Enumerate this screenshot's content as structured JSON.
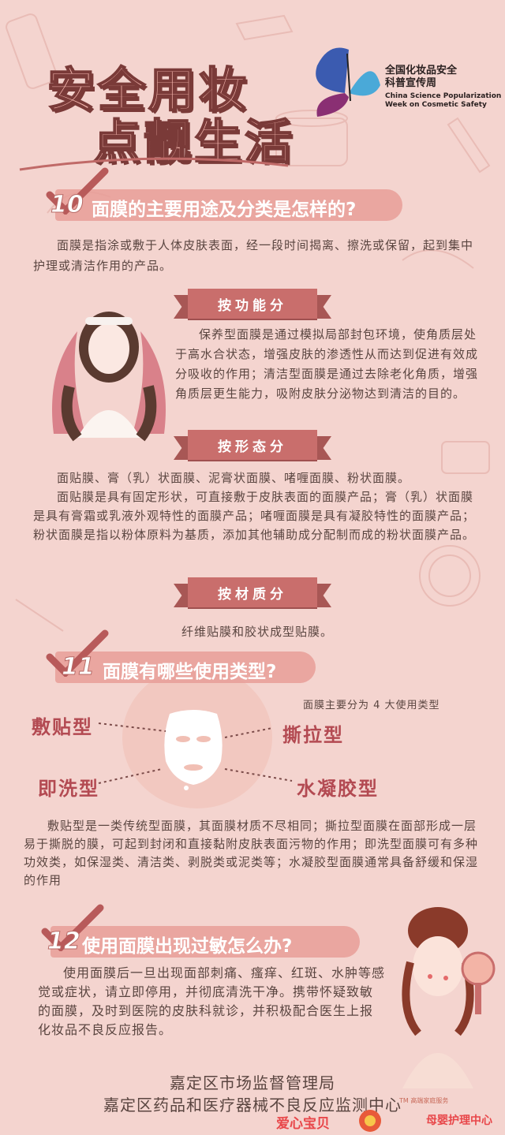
{
  "header": {
    "title_line1": "安全用妆",
    "title_line2": "点靓生活",
    "logo_cn_line1": "全国化妆品安全",
    "logo_cn_line2": "科普宣传周",
    "logo_en_line1": "China Science Popularization",
    "logo_en_line2": "Week on Cosmetic Safety"
  },
  "section10": {
    "number": "10",
    "title": "面膜的主要用途及分类是怎样的?",
    "intro": "面膜是指涂或敷于人体皮肤表面，经一段时间揭离、擦洗或保留，起到集中护理或清洁作用的产品。",
    "by_function": {
      "label": "按功能分",
      "text": "保养型面膜是通过模拟局部封包环境，使角质层处于高水合状态，增强皮肤的渗透性从而达到促进有效成分吸收的作用；清洁型面膜是通过去除老化角质，增强角质层更生能力，吸附皮肤分泌物达到清洁的目的。"
    },
    "by_form": {
      "label": "按形态分",
      "line1": "面贴膜、膏（乳）状面膜、泥膏状面膜、啫喱面膜、粉状面膜。",
      "text": "面贴膜是具有固定形状，可直接敷于皮肤表面的面膜产品；膏（乳）状面膜是具有膏霜或乳液外观特性的面膜产品；啫喱面膜是具有凝胶特性的面膜产品；粉状面膜是指以粉体原料为基质，添加其他辅助成分配制而成的粉状面膜产品。"
    },
    "by_material": {
      "label": "按材质分",
      "text": "纤维贴膜和胶状成型贴膜。"
    }
  },
  "section11": {
    "number": "11",
    "title": "面膜有哪些使用类型?",
    "subtitle": "面膜主要分为 4 大使用类型",
    "types": [
      "敷贴型",
      "撕拉型",
      "即洗型",
      "水凝胶型"
    ],
    "text": "敷贴型是一类传统型面膜，其面膜材质不尽相同；撕拉型面膜在面部形成一层易于撕脱的膜，可起到封闭和直接黏附皮肤表面污物的作用；即洗型面膜可有多种功效类，如保湿类、清洁类、剥脱类或泥类等；水凝胶型面膜通常具备舒缓和保湿的作用"
  },
  "section12": {
    "number": "12",
    "title": "使用面膜出现过敏怎么办?",
    "text": "使用面膜后一旦出现面部刺痛、瘙痒、红斑、水肿等感觉或症状，请立即停用，并彻底清洗干净。携带怀疑致敏的面膜，及时到医院的皮肤科就诊，并积极配合医生上报化妆品不良反应报告。"
  },
  "footer": {
    "line1": "嘉定区市场监督管理局",
    "line2": "嘉定区药品和医疗器械不良反应监测中心"
  },
  "watermark": {
    "left": "爱心宝贝",
    "right": "母婴护理中心",
    "small": "TM 高端家庭服务"
  },
  "colors": {
    "background": "#f4d4cf",
    "accent": "#c96e6c",
    "label_red": "#b34a52"
  }
}
